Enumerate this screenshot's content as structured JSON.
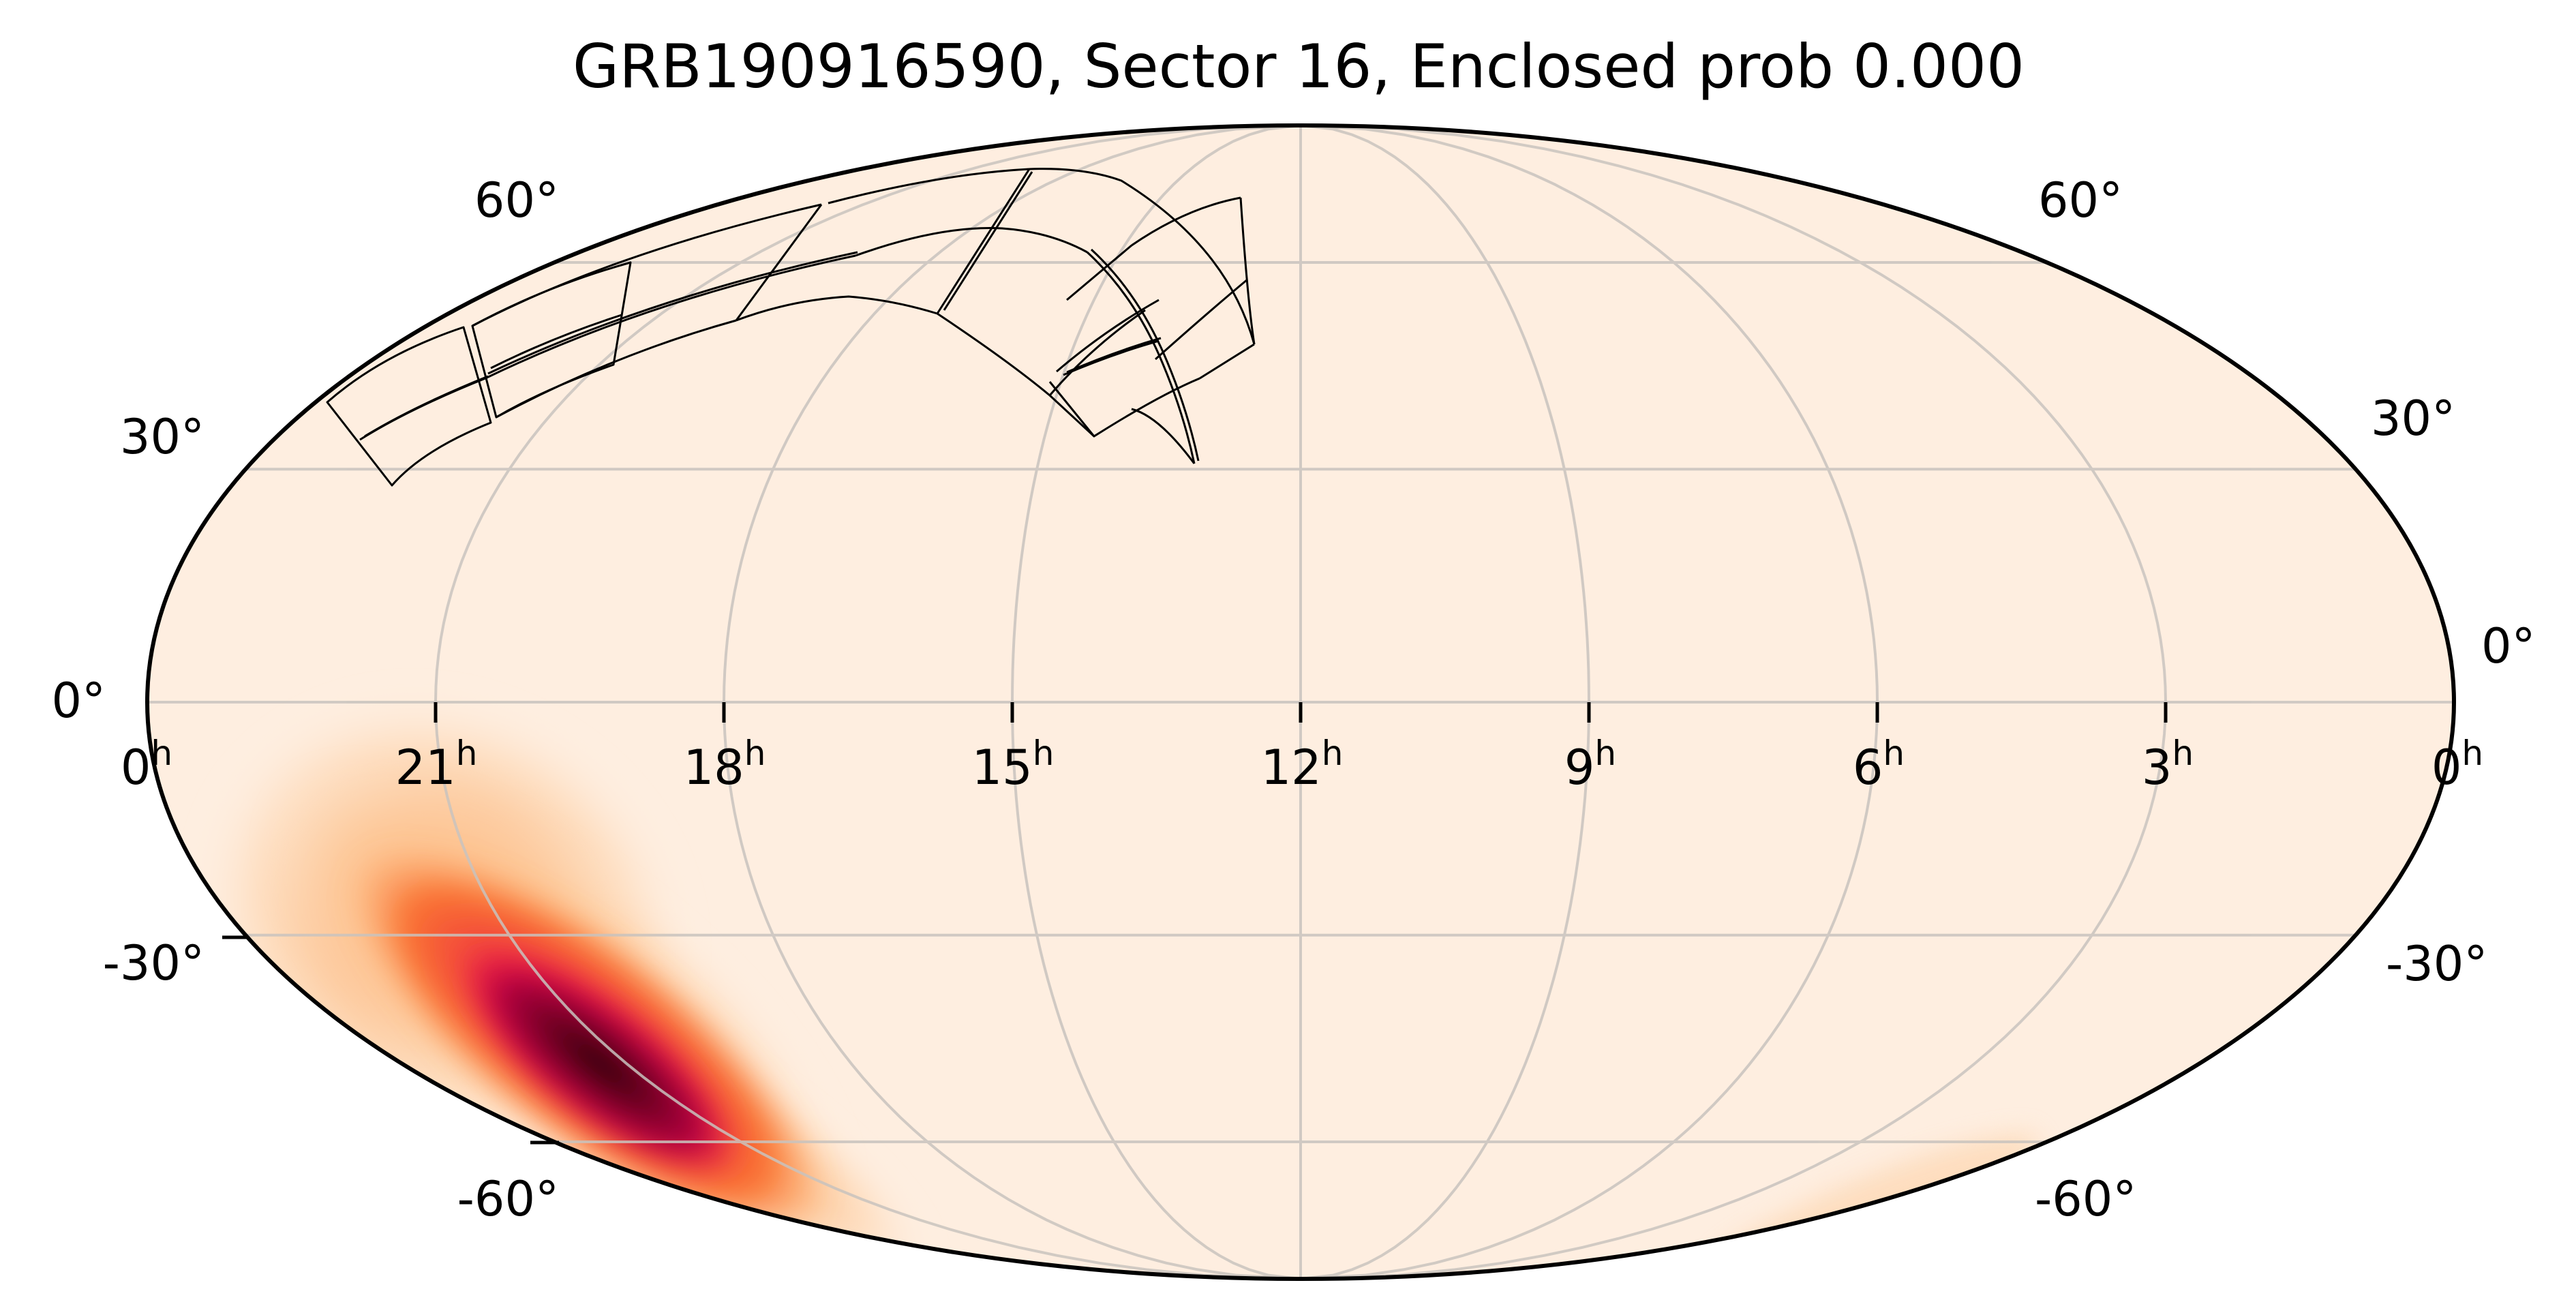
{
  "chart_data": {
    "type": "heatmap",
    "projection": "mollweide",
    "title": "GRB190916590, Sector 16, Enclosed prob 0.000",
    "xlabel": "",
    "ylabel": "",
    "grid": true,
    "grid_color": "#d3ccc6",
    "background_color": "#feeee0",
    "outline_color": "#000000",
    "colormap": [
      "#feeee0",
      "#fdd2a8",
      "#fda35f",
      "#f96a2a",
      "#f03a3f",
      "#e8004d",
      "#a5003c",
      "#3a0008"
    ],
    "ra_ticks": [
      {
        "label": "0",
        "unit": "h",
        "ra_hours": 24
      },
      {
        "label": "21",
        "unit": "h",
        "ra_hours": 21
      },
      {
        "label": "18",
        "unit": "h",
        "ra_hours": 18
      },
      {
        "label": "15",
        "unit": "h",
        "ra_hours": 15
      },
      {
        "label": "12",
        "unit": "h",
        "ra_hours": 12
      },
      {
        "label": "9",
        "unit": "h",
        "ra_hours": 9
      },
      {
        "label": "6",
        "unit": "h",
        "ra_hours": 6
      },
      {
        "label": "3",
        "unit": "h",
        "ra_hours": 3
      },
      {
        "label": "0",
        "unit": "h",
        "ra_hours": 0
      }
    ],
    "dec_ticks_left": [
      "60°",
      "30°",
      "0°",
      "-30°",
      "-60°"
    ],
    "dec_ticks_right": [
      "60°",
      "30°",
      "0°",
      "-30°",
      "-60°"
    ],
    "dec_values": [
      60,
      30,
      0,
      -30,
      -60
    ],
    "probability_peak": {
      "ra_hours": 19.6,
      "dec_deg": -47,
      "description": "elongated localization region, peak near RA ~19.6h, Dec ~-47°"
    },
    "enclosed_probability": 0.0,
    "sector": 16,
    "event": "GRB190916590",
    "footprint": "TESS Sector 16 camera/CCD outlines in northern sky, RA ~13h–22h, Dec ~+25° to +80°"
  }
}
